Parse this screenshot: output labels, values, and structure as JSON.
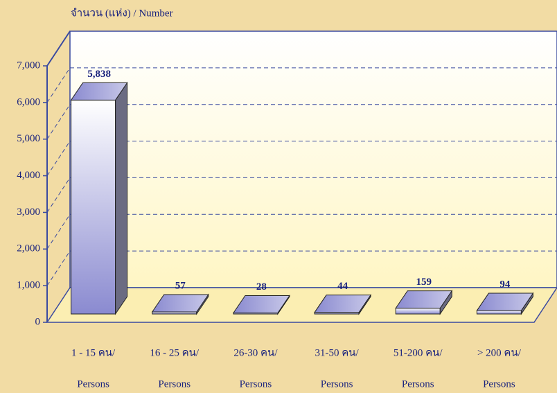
{
  "chart_data": {
    "type": "bar",
    "y_label": "จำนวน (แห่ง) / Number",
    "categories": [
      [
        "1 - 15 คน/",
        "Persons"
      ],
      [
        "16 - 25 คน/",
        "Persons"
      ],
      [
        "26-30 คน/",
        "Persons"
      ],
      [
        "31-50 คน/",
        "Persons"
      ],
      [
        "51-200 คน/",
        "Persons"
      ],
      [
        "> 200 คน/",
        "Persons"
      ]
    ],
    "values": [
      5838,
      57,
      28,
      44,
      159,
      94
    ],
    "value_labels": [
      "5,838",
      "57",
      "28",
      "44",
      "159",
      "94"
    ],
    "ylim": [
      0,
      7000
    ],
    "yticks": [
      0,
      {
        "value": 1000,
        "label": "1,000"
      },
      {
        "value": 2000,
        "label": "2,000"
      },
      {
        "value": 3000,
        "label": "3,000"
      },
      {
        "value": 4000,
        "label": "4,000"
      },
      {
        "value": 5000,
        "label": "5,000"
      },
      {
        "value": 6000,
        "label": "6,000"
      },
      {
        "value": 7000,
        "label": "7,000"
      }
    ],
    "grid": true
  }
}
